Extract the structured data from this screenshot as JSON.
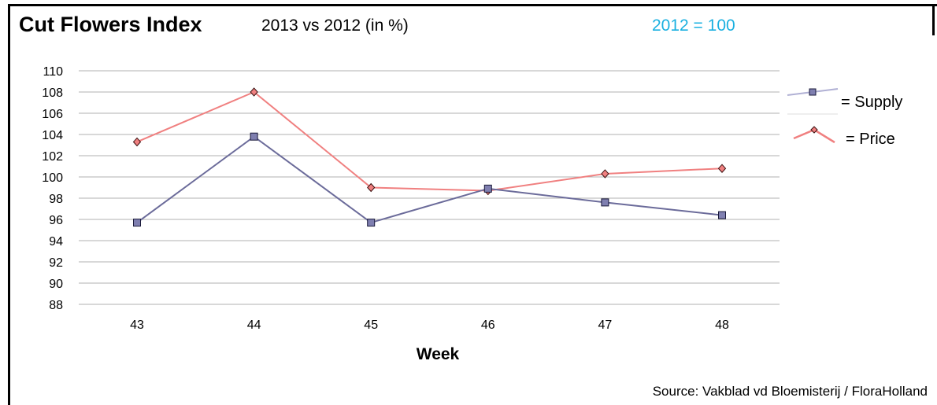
{
  "header": {
    "title": "Cut Flowers Index",
    "subtitle": "2013 vs 2012 (in %)",
    "baseline_note": "2012 = 100"
  },
  "footer": {
    "source": "Source: Vakblad vd Bloemisterij / FloraHolland"
  },
  "colors": {
    "supply": "#6b6b9a",
    "supply_marker": "#7f7fb0",
    "price": "#f08080",
    "price_marker": "#f08080",
    "baseline_note": "#1ab0e0",
    "grid": "#b0b0b0"
  },
  "chart_data": {
    "type": "line",
    "title": "Cut Flowers Index",
    "subtitle": "2013 vs 2012 (in %)",
    "xlabel": "Week",
    "ylabel": "",
    "categories": [
      "43",
      "44",
      "45",
      "46",
      "47",
      "48"
    ],
    "ylim": [
      88,
      110
    ],
    "yticks": [
      88,
      90,
      92,
      94,
      96,
      98,
      100,
      102,
      104,
      106,
      108,
      110
    ],
    "grid": true,
    "legend_position": "right",
    "series": [
      {
        "name": "= Supply",
        "values": [
          95.7,
          103.8,
          95.7,
          98.9,
          97.6,
          96.4
        ],
        "marker": "square"
      },
      {
        "name": "= Price",
        "values": [
          103.3,
          108.0,
          99.0,
          98.7,
          100.3,
          100.8
        ],
        "marker": "diamond"
      }
    ]
  }
}
